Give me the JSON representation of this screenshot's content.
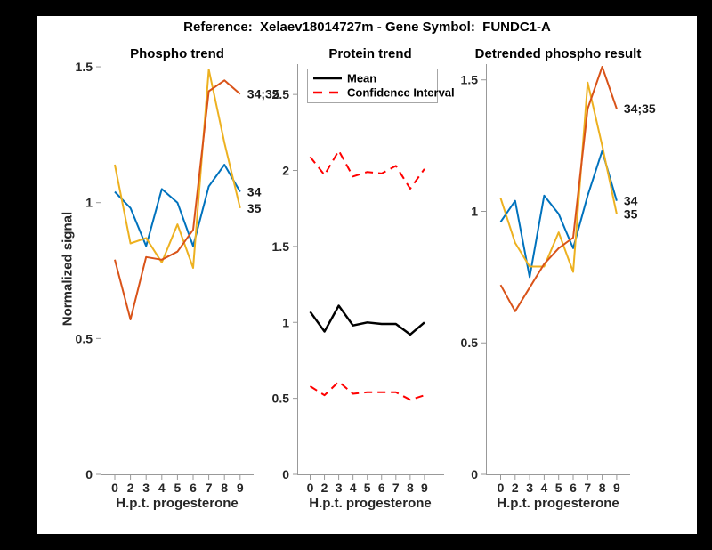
{
  "figure": {
    "title": "Reference:  Xelaev18014727m - Gene Symbol:  FUNDC1-A",
    "background_color": "#ffffff",
    "frame_color": "#000000"
  },
  "axis_style": {
    "axis_color": "#999999",
    "tick_text_color": "#262626",
    "legend_border_color": "#a6a6a6"
  },
  "chart_data": [
    {
      "type": "line",
      "title": "Phospho trend",
      "xlabel": "H.p.t. progesterone",
      "ylabel": "Normalized signal",
      "categories": [
        "0",
        "2",
        "3",
        "4",
        "5",
        "6",
        "7",
        "8",
        "9"
      ],
      "y_ticks": [
        0,
        0.5,
        1,
        1.5
      ],
      "y_ticklabels": [
        "0",
        "0.5",
        "1",
        "1.5"
      ],
      "ylim": [
        0,
        1.51
      ],
      "grid": false,
      "legend": null,
      "series": [
        {
          "name": "34",
          "end_label": "34",
          "color": "#0072bd",
          "line_style": "solid",
          "values": [
            1.04,
            0.98,
            0.84,
            1.05,
            1.0,
            0.84,
            1.06,
            1.14,
            1.04
          ]
        },
        {
          "name": "35",
          "end_label": "35",
          "color": "#edb120",
          "line_style": "solid",
          "values": [
            1.14,
            0.85,
            0.87,
            0.78,
            0.92,
            0.76,
            1.49,
            1.22,
            0.98
          ]
        },
        {
          "name": "34;35",
          "end_label": "34;35",
          "color": "#d95319",
          "line_style": "solid",
          "values": [
            0.79,
            0.57,
            0.8,
            0.79,
            0.82,
            0.9,
            1.41,
            1.45,
            1.4
          ]
        }
      ]
    },
    {
      "type": "line",
      "title": "Protein trend",
      "xlabel": "H.p.t. progesterone",
      "ylabel": "",
      "categories": [
        "0",
        "2",
        "3",
        "4",
        "5",
        "6",
        "7",
        "8",
        "9"
      ],
      "y_ticks": [
        0,
        0.5,
        1,
        1.5,
        2,
        2.5
      ],
      "y_ticklabels": [
        "0",
        "0.5",
        "1",
        "1.5",
        "2",
        "2.5"
      ],
      "ylim": [
        0,
        2.7
      ],
      "grid": false,
      "legend": {
        "position": "top-left",
        "entries": [
          {
            "label": "Mean",
            "color": "#000000",
            "line_style": "solid"
          },
          {
            "label": "Confidence Interval",
            "color": "#ff0000",
            "line_style": "dashed"
          }
        ]
      },
      "series": [
        {
          "name": "Mean",
          "end_label": null,
          "color": "#000000",
          "line_style": "solid",
          "values": [
            1.07,
            0.94,
            1.11,
            0.98,
            1.0,
            0.99,
            0.99,
            0.92,
            1.0
          ]
        },
        {
          "name": "Confidence Interval upper",
          "end_label": null,
          "color": "#ff0000",
          "line_style": "dashed",
          "values": [
            2.09,
            1.97,
            2.13,
            1.96,
            1.99,
            1.98,
            2.03,
            1.88,
            2.01
          ]
        },
        {
          "name": "Confidence Interval lower",
          "end_label": null,
          "color": "#ff0000",
          "line_style": "dashed",
          "values": [
            0.58,
            0.52,
            0.61,
            0.53,
            0.54,
            0.54,
            0.54,
            0.49,
            0.52
          ]
        }
      ]
    },
    {
      "type": "line",
      "title": "Detrended phospho result",
      "xlabel": "H.p.t. progesterone",
      "ylabel": "",
      "categories": [
        "0",
        "2",
        "3",
        "4",
        "5",
        "6",
        "7",
        "8",
        "9"
      ],
      "y_ticks": [
        0,
        0.5,
        1,
        1.5
      ],
      "y_ticklabels": [
        "0",
        "0.5",
        "1",
        "1.5"
      ],
      "ylim": [
        0,
        1.56
      ],
      "grid": false,
      "legend": null,
      "series": [
        {
          "name": "34",
          "end_label": "34",
          "color": "#0072bd",
          "line_style": "solid",
          "values": [
            0.96,
            1.04,
            0.75,
            1.06,
            0.99,
            0.86,
            1.06,
            1.23,
            1.04
          ]
        },
        {
          "name": "35",
          "end_label": "35",
          "color": "#edb120",
          "line_style": "solid",
          "values": [
            1.05,
            0.88,
            0.79,
            0.79,
            0.92,
            0.77,
            1.49,
            1.25,
            0.99
          ]
        },
        {
          "name": "34;35",
          "end_label": "34;35",
          "color": "#d95319",
          "line_style": "solid",
          "values": [
            0.72,
            0.62,
            0.71,
            0.8,
            0.86,
            0.9,
            1.39,
            1.55,
            1.39
          ]
        }
      ]
    }
  ]
}
